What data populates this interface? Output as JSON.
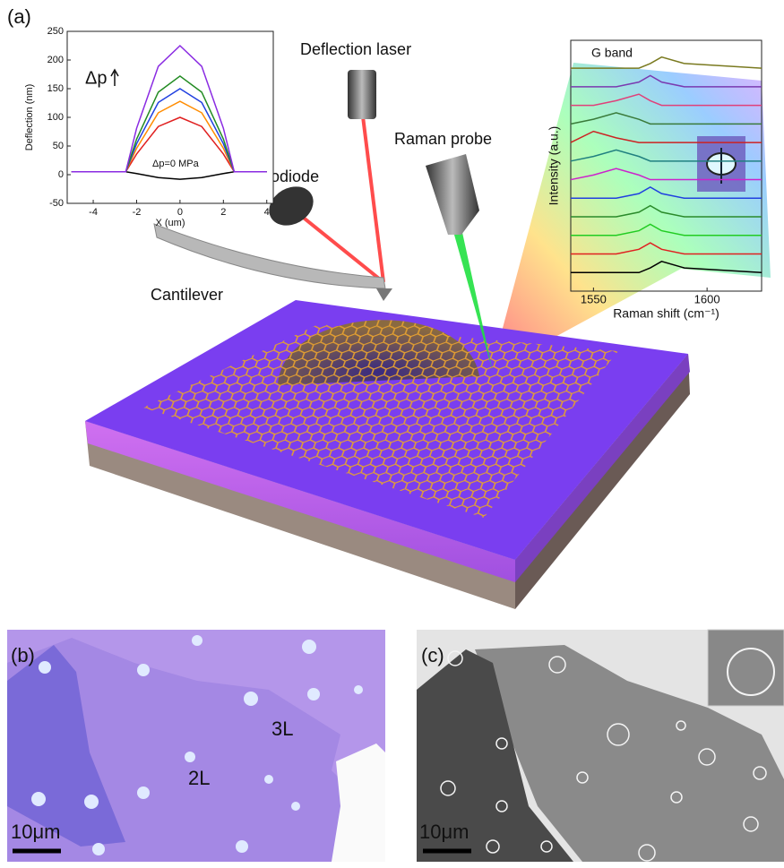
{
  "figure": {
    "panel_a": {
      "label": "(a)",
      "deflection_laser": "Deflection laser",
      "raman_probe": "Raman probe",
      "photodiode": "Photodiode",
      "cantilever": "Cantilever"
    },
    "panel_b": {
      "label": "(b)",
      "layers": [
        "3L",
        "2L"
      ],
      "scale_bar": "10μm"
    },
    "panel_c": {
      "label": "(c)",
      "scale_bar": "10μm"
    }
  },
  "chart_data": [
    {
      "type": "line",
      "ylabel": "Deflection (nm)",
      "xlabel": "X (um)",
      "annotations": [
        "Δp",
        "Δp=0 MPa"
      ],
      "x": [
        -5,
        -4,
        -3,
        -2.5,
        -2,
        -1,
        0,
        1,
        2,
        2.5,
        3,
        4
      ],
      "xlim": [
        -5.2,
        4.3
      ],
      "xticks": [
        -4,
        -2,
        0,
        2,
        4
      ],
      "ylim": [
        -50,
        250
      ],
      "yticks": [
        -50,
        0,
        50,
        100,
        150,
        200,
        250
      ],
      "series": [
        {
          "color": "#000000",
          "values": [
            5,
            5,
            5,
            5,
            2,
            -5,
            -8,
            -5,
            2,
            5,
            5,
            5
          ]
        },
        {
          "color": "#e02020",
          "values": [
            5,
            5,
            5,
            5,
            36,
            84,
            100,
            84,
            36,
            5,
            5,
            5
          ]
        },
        {
          "color": "#ff8c00",
          "values": [
            5,
            5,
            5,
            5,
            46,
            108,
            128,
            108,
            46,
            5,
            5,
            5
          ]
        },
        {
          "color": "#2040e0",
          "values": [
            5,
            5,
            5,
            5,
            54,
            126,
            150,
            126,
            54,
            5,
            5,
            5
          ]
        },
        {
          "color": "#228b22",
          "values": [
            5,
            5,
            5,
            5,
            62,
            144,
            172,
            144,
            62,
            5,
            5,
            5
          ]
        },
        {
          "color": "#8a2be2",
          "values": [
            5,
            5,
            5,
            5,
            81,
            189,
            225,
            189,
            81,
            5,
            5,
            5
          ]
        }
      ]
    },
    {
      "type": "line",
      "ylabel": "Intensity (a.u.)",
      "xlabel": "Raman shift (cm⁻¹)",
      "annotations": [
        "G band"
      ],
      "x": [
        1540,
        1550,
        1560,
        1570,
        1575,
        1580,
        1590,
        1624
      ],
      "xlim": [
        1540,
        1624
      ],
      "xticks": [
        1550,
        1600
      ],
      "ylim": [
        -1,
        12.5
      ],
      "series": [
        {
          "color": "#000000",
          "values": [
            0,
            0,
            0,
            0,
            0.25,
            0.6,
            0.25,
            0
          ]
        },
        {
          "color": "#e02020",
          "values": [
            1,
            1,
            1,
            1.25,
            1.6,
            1.25,
            1,
            1
          ]
        },
        {
          "color": "#22cc22",
          "values": [
            2,
            2,
            2,
            2.25,
            2.6,
            2.25,
            2,
            2
          ]
        },
        {
          "color": "#2a8a2a",
          "values": [
            3,
            3,
            3,
            3.25,
            3.6,
            3.25,
            3,
            3
          ]
        },
        {
          "color": "#2040e0",
          "values": [
            4,
            4,
            4,
            4.25,
            4.6,
            4.25,
            4,
            4
          ]
        },
        {
          "color": "#cc22cc",
          "values": [
            5,
            5.25,
            5.6,
            5.25,
            5,
            5,
            5,
            5
          ]
        },
        {
          "color": "#208080",
          "values": [
            6,
            6.25,
            6.6,
            6.25,
            6,
            6,
            6,
            6
          ]
        },
        {
          "color": "#cc2222",
          "values": [
            7,
            7.6,
            7.25,
            7,
            7,
            7,
            7,
            7
          ]
        },
        {
          "color": "#3a7a3a",
          "values": [
            8,
            8.25,
            8.6,
            8.25,
            8,
            8,
            8,
            8
          ]
        },
        {
          "color": "#e0407a",
          "values": [
            9,
            9,
            9.25,
            9.6,
            9.25,
            9,
            9,
            9
          ]
        },
        {
          "color": "#7a3ab0",
          "values": [
            10,
            10,
            10,
            10.25,
            10.6,
            10.25,
            10,
            10
          ]
        },
        {
          "color": "#7a7a20",
          "values": [
            11,
            11,
            11,
            11,
            11.25,
            11.6,
            11.25,
            11
          ]
        }
      ]
    }
  ]
}
